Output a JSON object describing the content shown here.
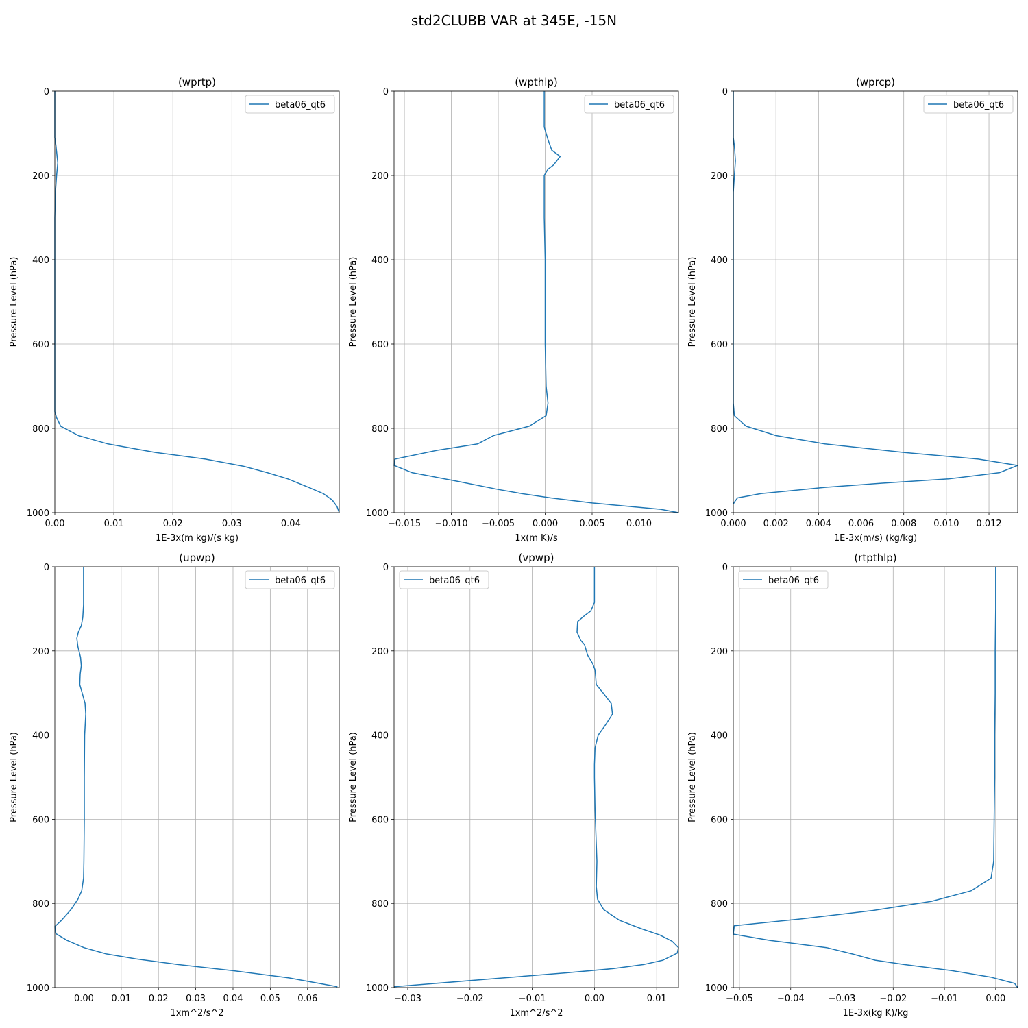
{
  "figure_title": "std2CLUBB VAR at 345E, -15N",
  "colors": {
    "series": "#1f77b4",
    "grid": "#b0b0b0"
  },
  "chart_data": [
    {
      "type": "line",
      "title": "(wprtp)",
      "xlabel": "1E-3x(m kg)/(s kg)",
      "ylabel": "Pressure Level (hPa)",
      "xlim": [
        0,
        0.0482
      ],
      "ylim": [
        1000,
        0
      ],
      "xticks": [
        0,
        0.01,
        0.02,
        0.03,
        0.04
      ],
      "xtick_labels": [
        "0.00",
        "0.01",
        "0.02",
        "0.03",
        "0.04"
      ],
      "yticks": [
        0,
        200,
        400,
        600,
        800,
        1000
      ],
      "ytick_labels": [
        "0",
        "200",
        "400",
        "600",
        "800",
        "1000"
      ],
      "grid": true,
      "legend": "top-right",
      "series": [
        {
          "name": "beta06_qt6",
          "points": [
            [
              0,
              0
            ],
            [
              0,
              110
            ],
            [
              0.0002,
              130
            ],
            [
              0.0005,
              170
            ],
            [
              0.0003,
              200
            ],
            [
              0.0001,
              240
            ],
            [
              0,
              300
            ],
            [
              0,
              760
            ],
            [
              0.0003,
              775
            ],
            [
              0.001,
              795
            ],
            [
              0.004,
              817
            ],
            [
              0.009,
              837
            ],
            [
              0.017,
              857
            ],
            [
              0.0255,
              873
            ],
            [
              0.032,
              890
            ],
            [
              0.036,
              905
            ],
            [
              0.0395,
              920
            ],
            [
              0.043,
              940
            ],
            [
              0.0455,
              955
            ],
            [
              0.047,
              970
            ],
            [
              0.0478,
              985
            ],
            [
              0.0482,
              1000
            ]
          ]
        }
      ]
    },
    {
      "type": "line",
      "title": "(wpthlp)",
      "xlabel": "1x(m K)/s",
      "ylabel": "Pressure Level (hPa)",
      "xlim": [
        -0.0161,
        0.0142
      ],
      "ylim": [
        1000,
        0
      ],
      "xticks": [
        -0.015,
        -0.01,
        -0.005,
        0,
        0.005,
        0.01
      ],
      "xtick_labels": [
        "−0.015",
        "−0.010",
        "−0.005",
        "0.000",
        "0.005",
        "0.010"
      ],
      "yticks": [
        0,
        200,
        400,
        600,
        800,
        1000
      ],
      "ytick_labels": [
        "0",
        "200",
        "400",
        "600",
        "800",
        "1000"
      ],
      "grid": true,
      "legend": "top-right",
      "series": [
        {
          "name": "beta06_qt6",
          "points": [
            [
              -0.0001,
              0
            ],
            [
              -0.0001,
              85
            ],
            [
              0.0003,
              115
            ],
            [
              0.0007,
              140
            ],
            [
              0.0016,
              155
            ],
            [
              0.0009,
              175
            ],
            [
              0.0003,
              185
            ],
            [
              -0.0001,
              200
            ],
            [
              -0.0001,
              240
            ],
            [
              -0.0001,
              300
            ],
            [
              0,
              400
            ],
            [
              0,
              500
            ],
            [
              0,
              600
            ],
            [
              0.0001,
              700
            ],
            [
              0.0003,
              740
            ],
            [
              0.0001,
              770
            ],
            [
              -0.0017,
              795
            ],
            [
              -0.0055,
              817
            ],
            [
              -0.0072,
              837
            ],
            [
              -0.0115,
              852
            ],
            [
              -0.016,
              873
            ],
            [
              -0.0161,
              888
            ],
            [
              -0.0142,
              905
            ],
            [
              -0.0095,
              925
            ],
            [
              -0.005,
              945
            ],
            [
              -0.0025,
              955
            ],
            [
              0.0006,
              965
            ],
            [
              0.005,
              977
            ],
            [
              0.0123,
              992
            ],
            [
              0.0142,
              1000
            ]
          ]
        }
      ]
    },
    {
      "type": "line",
      "title": "(wprcp)",
      "xlabel": "1E-3x(m/s) (kg/kg)",
      "ylabel": "Pressure Level (hPa)",
      "xlim": [
        0,
        0.01335
      ],
      "ylim": [
        1000,
        0
      ],
      "xticks": [
        0,
        0.002,
        0.004,
        0.006,
        0.008,
        0.01,
        0.012
      ],
      "xtick_labels": [
        "0.000",
        "0.002",
        "0.004",
        "0.006",
        "0.008",
        "0.010",
        "0.012"
      ],
      "yticks": [
        0,
        200,
        400,
        600,
        800,
        1000
      ],
      "ytick_labels": [
        "0",
        "200",
        "400",
        "600",
        "800",
        "1000"
      ],
      "grid": true,
      "legend": "top-right",
      "series": [
        {
          "name": "beta06_qt6",
          "points": [
            [
              0,
              0
            ],
            [
              0,
              110
            ],
            [
              5e-05,
              130
            ],
            [
              0.0001,
              165
            ],
            [
              5e-05,
              200
            ],
            [
              0,
              240
            ],
            [
              0,
              740
            ],
            [
              5e-05,
              770
            ],
            [
              0.0006,
              795
            ],
            [
              0.002,
              817
            ],
            [
              0.0043,
              837
            ],
            [
              0.008,
              857
            ],
            [
              0.0115,
              873
            ],
            [
              0.01335,
              888
            ],
            [
              0.0125,
              905
            ],
            [
              0.0101,
              920
            ],
            [
              0.007,
              930
            ],
            [
              0.0043,
              940
            ],
            [
              0.0013,
              955
            ],
            [
              0.0002,
              965
            ],
            [
              5e-05,
              975
            ],
            [
              0,
              980
            ]
          ]
        }
      ]
    },
    {
      "type": "line",
      "title": "(upwp)",
      "xlabel": "1xm^2/s^2",
      "ylabel": "Pressure Level (hPa)",
      "xlim": [
        -0.0078,
        0.0685
      ],
      "ylim": [
        1000,
        0
      ],
      "xticks": [
        0,
        0.01,
        0.02,
        0.03,
        0.04,
        0.05,
        0.06
      ],
      "xtick_labels": [
        "0.00",
        "0.01",
        "0.02",
        "0.03",
        "0.04",
        "0.05",
        "0.06"
      ],
      "yticks": [
        0,
        200,
        400,
        600,
        800,
        1000
      ],
      "ytick_labels": [
        "0",
        "200",
        "400",
        "600",
        "800",
        "1000"
      ],
      "grid": true,
      "legend": "top-right",
      "series": [
        {
          "name": "beta06_qt6",
          "points": [
            [
              -0.0001,
              0
            ],
            [
              -0.0001,
              90
            ],
            [
              -0.0003,
              120
            ],
            [
              -0.0007,
              140
            ],
            [
              -0.0015,
              155
            ],
            [
              -0.0019,
              170
            ],
            [
              -0.0016,
              190
            ],
            [
              -0.0009,
              215
            ],
            [
              -0.0007,
              235
            ],
            [
              -0.001,
              255
            ],
            [
              -0.0011,
              280
            ],
            [
              -0.0003,
              305
            ],
            [
              0.0003,
              325
            ],
            [
              0.0005,
              350
            ],
            [
              0.0002,
              400
            ],
            [
              0.0001,
              500
            ],
            [
              0.0001,
              600
            ],
            [
              0,
              700
            ],
            [
              -0.0001,
              740
            ],
            [
              -0.0006,
              770
            ],
            [
              -0.0016,
              790
            ],
            [
              -0.0035,
              815
            ],
            [
              -0.006,
              840
            ],
            [
              -0.0078,
              855
            ],
            [
              -0.0075,
              872
            ],
            [
              -0.0045,
              888
            ],
            [
              0,
              905
            ],
            [
              0.006,
              920
            ],
            [
              0.014,
              932
            ],
            [
              0.025,
              945
            ],
            [
              0.04,
              960
            ],
            [
              0.055,
              977
            ],
            [
              0.068,
              998
            ]
          ]
        }
      ]
    },
    {
      "type": "line",
      "title": "(vpwp)",
      "xlabel": "1xm^2/s^2",
      "ylabel": "Pressure Level (hPa)",
      "xlim": [
        -0.0322,
        0.0135
      ],
      "ylim": [
        1000,
        0
      ],
      "xticks": [
        -0.03,
        -0.02,
        -0.01,
        0,
        0.01
      ],
      "xtick_labels": [
        "−0.03",
        "−0.02",
        "−0.01",
        "0.00",
        "0.01"
      ],
      "yticks": [
        0,
        200,
        400,
        600,
        800,
        1000
      ],
      "ytick_labels": [
        "0",
        "200",
        "400",
        "600",
        "800",
        "1000"
      ],
      "grid": true,
      "legend": "top-left",
      "series": [
        {
          "name": "beta06_qt6",
          "points": [
            [
              0,
              0
            ],
            [
              0,
              85
            ],
            [
              -0.0006,
              105
            ],
            [
              -0.0015,
              115
            ],
            [
              -0.0027,
              130
            ],
            [
              -0.0028,
              155
            ],
            [
              -0.0022,
              175
            ],
            [
              -0.0016,
              185
            ],
            [
              -0.0011,
              210
            ],
            [
              -0.0003,
              230
            ],
            [
              0.0001,
              245
            ],
            [
              0.0003,
              280
            ],
            [
              0.0014,
              300
            ],
            [
              0.0027,
              325
            ],
            [
              0.0029,
              350
            ],
            [
              0.0018,
              375
            ],
            [
              0.0006,
              400
            ],
            [
              0.0001,
              430
            ],
            [
              0,
              470
            ],
            [
              0,
              500
            ],
            [
              0.0001,
              580
            ],
            [
              0.0003,
              660
            ],
            [
              0.0004,
              700
            ],
            [
              0.0003,
              760
            ],
            [
              0.0005,
              790
            ],
            [
              0.0015,
              815
            ],
            [
              0.004,
              840
            ],
            [
              0.0075,
              860
            ],
            [
              0.0105,
              875
            ],
            [
              0.0125,
              890
            ],
            [
              0.0135,
              905
            ],
            [
              0.0133,
              918
            ],
            [
              0.011,
              935
            ],
            [
              0.008,
              945
            ],
            [
              0.003,
              955
            ],
            [
              -0.0045,
              965
            ],
            [
              -0.0155,
              978
            ],
            [
              -0.0322,
              998
            ]
          ]
        }
      ]
    },
    {
      "type": "line",
      "title": "(rtpthlp)",
      "xlabel": "1E-3x(kg K)/kg",
      "ylabel": "Pressure Level (hPa)",
      "xlim": [
        -0.0512,
        0.0043
      ],
      "ylim": [
        1000,
        0
      ],
      "xticks": [
        -0.05,
        -0.04,
        -0.03,
        -0.02,
        -0.01,
        0
      ],
      "xtick_labels": [
        "−0.05",
        "−0.04",
        "−0.03",
        "−0.02",
        "−0.01",
        "0.00"
      ],
      "yticks": [
        0,
        200,
        400,
        600,
        800,
        1000
      ],
      "ytick_labels": [
        "0",
        "200",
        "400",
        "600",
        "800",
        "1000"
      ],
      "grid": true,
      "legend": "top-left",
      "series": [
        {
          "name": "beta06_qt6",
          "points": [
            [
              0,
              0
            ],
            [
              0,
              100
            ],
            [
              -0.0001,
              200
            ],
            [
              -0.0001,
              300
            ],
            [
              -0.0002,
              400
            ],
            [
              -0.0002,
              500
            ],
            [
              -0.0003,
              600
            ],
            [
              -0.0004,
              700
            ],
            [
              -0.0009,
              740
            ],
            [
              -0.0048,
              770
            ],
            [
              -0.0125,
              795
            ],
            [
              -0.024,
              817
            ],
            [
              -0.038,
              837
            ],
            [
              -0.051,
              853
            ],
            [
              -0.0512,
              873
            ],
            [
              -0.044,
              888
            ],
            [
              -0.033,
              905
            ],
            [
              -0.028,
              920
            ],
            [
              -0.0235,
              935
            ],
            [
              -0.018,
              945
            ],
            [
              -0.0085,
              960
            ],
            [
              -0.001,
              975
            ],
            [
              0.0037,
              990
            ],
            [
              0.0043,
              1000
            ]
          ]
        }
      ]
    }
  ]
}
